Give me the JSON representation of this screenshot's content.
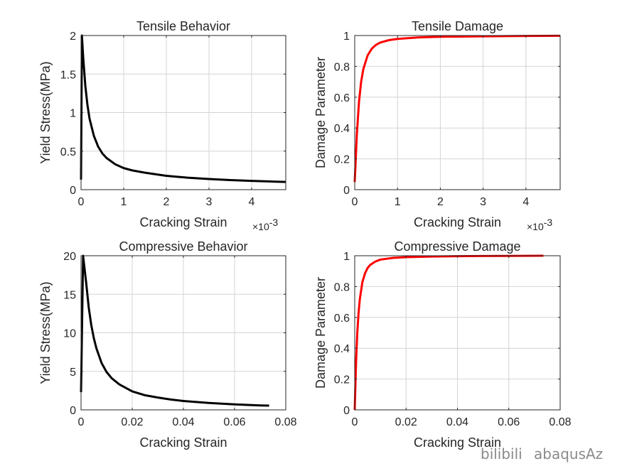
{
  "chart_data": [
    {
      "type": "line",
      "title": "Tensile Behavior",
      "xlabel": "Cracking Strain",
      "ylabel": "Yield Stress(MPa)",
      "xlim": [
        0,
        0.0048
      ],
      "ylim": [
        0,
        2
      ],
      "x_ticks": [
        0,
        0.001,
        0.002,
        0.003,
        0.004
      ],
      "x_tick_labels": [
        "0",
        "1",
        "2",
        "3",
        "4"
      ],
      "x_exponent_label": "×10",
      "x_exponent_power": "-3",
      "y_ticks": [
        0,
        0.5,
        1,
        1.5,
        2
      ],
      "y_tick_labels": [
        "0",
        "0.5",
        "1",
        "1.5",
        "2"
      ],
      "grid": true,
      "series": [
        {
          "color": "#000000",
          "x": [
            0,
            2e-05,
            5e-05,
            0.0001,
            0.00015,
            0.0002,
            0.0003,
            0.0004,
            0.0005,
            0.0006,
            0.0008,
            0.001,
            0.0012,
            0.0015,
            0.002,
            0.0025,
            0.003,
            0.0035,
            0.004,
            0.0045,
            0.0048
          ],
          "y": [
            0.13,
            2.0,
            1.72,
            1.35,
            1.1,
            0.92,
            0.7,
            0.56,
            0.47,
            0.41,
            0.33,
            0.28,
            0.25,
            0.22,
            0.18,
            0.155,
            0.138,
            0.125,
            0.114,
            0.105,
            0.1
          ]
        }
      ]
    },
    {
      "type": "line",
      "title": "Tensile Damage",
      "xlabel": "Cracking Strain",
      "ylabel": "Damage Parameter",
      "xlim": [
        0,
        0.0048
      ],
      "ylim": [
        0,
        1
      ],
      "x_ticks": [
        0,
        0.001,
        0.002,
        0.003,
        0.004
      ],
      "x_tick_labels": [
        "0",
        "1",
        "2",
        "3",
        "4"
      ],
      "x_exponent_label": "×10",
      "x_exponent_power": "-3",
      "y_ticks": [
        0,
        0.2,
        0.4,
        0.6,
        0.8,
        1
      ],
      "y_tick_labels": [
        "0",
        "0.2",
        "0.4",
        "0.6",
        "0.8",
        "1"
      ],
      "grid": true,
      "series": [
        {
          "color": "#ff0000",
          "x": [
            0,
            5e-05,
            0.0001,
            0.00015,
            0.0002,
            0.0003,
            0.0004,
            0.0005,
            0.0006,
            0.0008,
            0.001,
            0.0015,
            0.002,
            0.003,
            0.004,
            0.0048
          ],
          "y": [
            0.05,
            0.36,
            0.57,
            0.7,
            0.78,
            0.87,
            0.915,
            0.94,
            0.955,
            0.97,
            0.978,
            0.988,
            0.992,
            0.995,
            0.997,
            0.998
          ]
        }
      ]
    },
    {
      "type": "line",
      "title": "Compressive Behavior",
      "xlabel": "Cracking Strain",
      "ylabel": "Yield Stress(MPa)",
      "xlim": [
        0,
        0.08
      ],
      "ylim": [
        0,
        20
      ],
      "x_ticks": [
        0,
        0.02,
        0.04,
        0.06,
        0.08
      ],
      "x_tick_labels": [
        "0",
        "0.02",
        "0.04",
        "0.06",
        "0.08"
      ],
      "y_ticks": [
        0,
        5,
        10,
        15,
        20
      ],
      "y_tick_labels": [
        "0",
        "5",
        "10",
        "15",
        "20"
      ],
      "grid": true,
      "series": [
        {
          "color": "#000000",
          "x": [
            0,
            0.0008,
            0.002,
            0.003,
            0.004,
            0.005,
            0.006,
            0.008,
            0.01,
            0.012,
            0.015,
            0.02,
            0.025,
            0.03,
            0.035,
            0.04,
            0.05,
            0.06,
            0.065,
            0.07,
            0.0735
          ],
          "y": [
            2.3,
            20.0,
            16.5,
            13.3,
            11.0,
            9.3,
            8.0,
            6.1,
            4.9,
            4.1,
            3.3,
            2.4,
            1.9,
            1.6,
            1.35,
            1.15,
            0.9,
            0.72,
            0.65,
            0.58,
            0.55
          ]
        }
      ]
    },
    {
      "type": "line",
      "title": "Compressive Damage",
      "xlabel": "Cracking Strain",
      "ylabel": "Damage Parameter",
      "xlim": [
        0,
        0.08
      ],
      "ylim": [
        0,
        1
      ],
      "x_ticks": [
        0,
        0.02,
        0.04,
        0.06,
        0.08
      ],
      "x_tick_labels": [
        "0",
        "0.02",
        "0.04",
        "0.06",
        "0.08"
      ],
      "y_ticks": [
        0,
        0.2,
        0.4,
        0.6,
        0.8,
        1
      ],
      "y_tick_labels": [
        "0",
        "0.2",
        "0.4",
        "0.6",
        "0.8",
        "1"
      ],
      "grid": true,
      "series": [
        {
          "color": "#ff0000",
          "x": [
            0,
            0.0005,
            0.001,
            0.0015,
            0.002,
            0.003,
            0.004,
            0.005,
            0.006,
            0.008,
            0.01,
            0.015,
            0.02,
            0.03,
            0.04,
            0.05,
            0.06,
            0.0735
          ],
          "y": [
            0,
            0.3,
            0.5,
            0.63,
            0.72,
            0.83,
            0.885,
            0.92,
            0.94,
            0.962,
            0.975,
            0.986,
            0.991,
            0.995,
            0.997,
            0.998,
            0.999,
            1.0
          ]
        }
      ]
    }
  ],
  "watermark": {
    "brand": "bilibili",
    "author": "abaqusAz"
  }
}
